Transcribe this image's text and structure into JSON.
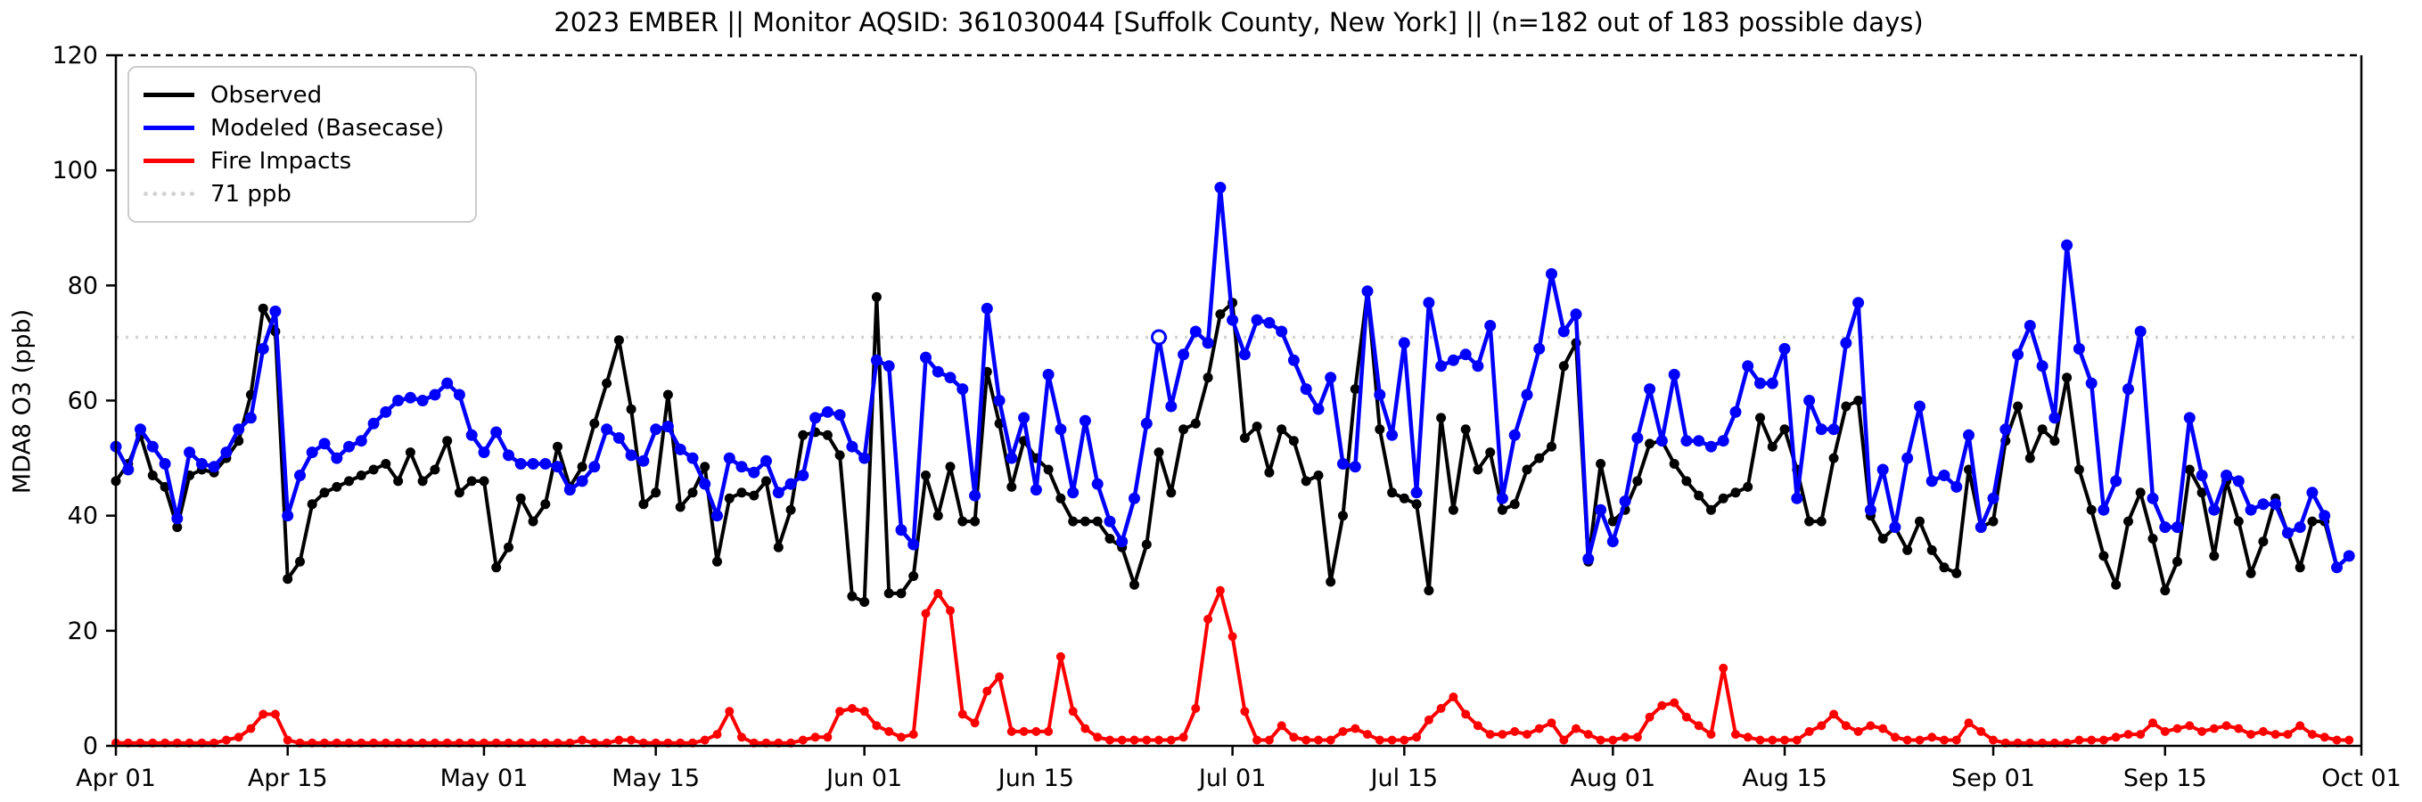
{
  "chart_data": {
    "type": "line",
    "title": "2023 EMBER || Monitor AQSID: 361030044 [Suffolk County, New York] || (n=182 out of 183 possible days)",
    "ylabel": "MDA8 O3 (ppb)",
    "xlabel": "",
    "ylim": [
      0,
      120
    ],
    "y_ticks": [
      0,
      20,
      40,
      60,
      80,
      100,
      120
    ],
    "x_start_date": "Apr 01",
    "x_end_date": "Oct 01",
    "n_days": 183,
    "x_ticks": [
      {
        "day": 0,
        "label": "Apr 01"
      },
      {
        "day": 14,
        "label": "Apr 15"
      },
      {
        "day": 30,
        "label": "May 01"
      },
      {
        "day": 44,
        "label": "May 15"
      },
      {
        "day": 61,
        "label": "Jun 01"
      },
      {
        "day": 75,
        "label": "Jun 15"
      },
      {
        "day": 91,
        "label": "Jul 01"
      },
      {
        "day": 105,
        "label": "Jul 15"
      },
      {
        "day": 122,
        "label": "Aug 01"
      },
      {
        "day": 136,
        "label": "Aug 15"
      },
      {
        "day": 153,
        "label": "Sep 01"
      },
      {
        "day": 167,
        "label": "Sep 15"
      },
      {
        "day": 183,
        "label": "Oct 01"
      }
    ],
    "grid": false,
    "legend_position": "upper-left",
    "threshold": {
      "label": "71 ppb",
      "value": 71,
      "color": "#d3d3d3",
      "style": "dotted"
    },
    "series": [
      {
        "name": "Observed",
        "color": "#000000",
        "marker": "circle",
        "values": [
          46,
          49,
          54,
          47,
          45,
          38,
          47,
          48,
          47.5,
          50,
          53,
          61,
          76,
          72,
          29,
          32,
          42,
          44,
          45,
          46,
          47,
          48,
          49,
          46,
          51,
          46,
          48,
          53,
          44,
          46,
          46,
          31,
          34.5,
          43,
          39,
          42,
          52,
          45,
          48.5,
          56,
          63,
          70.5,
          58.5,
          42,
          44,
          61,
          41.5,
          44,
          48.5,
          32,
          43,
          44,
          43.5,
          46,
          34.5,
          41,
          54,
          54.5,
          54,
          50.5,
          26,
          25,
          78,
          26.5,
          26.5,
          29.5,
          47,
          40,
          48.5,
          39,
          39,
          65,
          56,
          45,
          53,
          50,
          48,
          43,
          39,
          39,
          39,
          36,
          34.5,
          28,
          35,
          51,
          44,
          55,
          56,
          64,
          75,
          77,
          53.5,
          55.5,
          47.5,
          55,
          53,
          46,
          47,
          28.5,
          40,
          62,
          79,
          55,
          44,
          43,
          42,
          27,
          57,
          41,
          55,
          48,
          51,
          41,
          42,
          48,
          50,
          52,
          66,
          70,
          32,
          49,
          39,
          41,
          46,
          52.5,
          53,
          49,
          46,
          43.5,
          41,
          43,
          44,
          45,
          57,
          52,
          55,
          48,
          39,
          39,
          50,
          59,
          60,
          40,
          36,
          38,
          34,
          39,
          34,
          31,
          30,
          48,
          38,
          39,
          53,
          59,
          50,
          55,
          53,
          64,
          48,
          41,
          33,
          28,
          39,
          44,
          36,
          27,
          32,
          48,
          44,
          33,
          46,
          39,
          30,
          35.5,
          43,
          37,
          31,
          39,
          39,
          31,
          33
        ]
      },
      {
        "name": "Modeled (Basecase)",
        "color": "#0000ff",
        "marker": "circle",
        "open_marker_day_index": 85,
        "values": [
          52,
          48,
          55,
          52,
          49,
          39.5,
          51,
          49,
          48.5,
          51,
          55,
          57,
          69,
          75.5,
          40,
          47,
          51,
          52.5,
          50,
          52,
          53,
          56,
          58,
          60,
          60.5,
          60,
          61,
          63,
          61,
          54,
          51,
          54.5,
          50.5,
          49,
          49,
          49,
          48.5,
          44.5,
          46,
          48.5,
          55,
          53.5,
          50.5,
          49.5,
          55,
          55.5,
          51.5,
          50,
          45.5,
          40,
          50,
          48.5,
          47.5,
          49.5,
          44,
          45.5,
          47,
          57,
          58,
          57.5,
          52,
          50,
          67,
          66,
          37.5,
          35,
          67.5,
          65,
          64,
          62,
          43.5,
          76,
          60,
          50,
          57,
          44.5,
          64.5,
          55,
          44,
          56.5,
          45.5,
          39,
          35.5,
          43,
          56,
          71,
          59,
          68,
          72,
          70,
          97,
          74,
          68,
          74,
          73.5,
          72,
          67,
          62,
          58.5,
          64,
          49,
          48.5,
          79,
          61,
          54,
          70,
          44,
          77,
          66,
          67,
          68,
          66,
          73,
          43,
          54,
          61,
          69,
          82,
          72,
          75,
          32.5,
          41,
          35.5,
          42.5,
          53.5,
          62,
          53,
          64.5,
          53,
          53,
          52,
          53,
          58,
          66,
          63,
          63,
          69,
          43,
          60,
          55,
          55,
          70,
          77,
          41,
          48,
          38,
          50,
          59,
          46,
          47,
          45,
          54,
          38,
          43,
          55,
          68,
          73,
          66,
          57,
          87,
          69,
          63,
          41,
          46,
          62,
          72,
          43,
          38,
          38,
          57,
          47,
          41,
          47,
          46,
          41,
          42,
          42,
          37,
          38,
          44,
          40,
          31,
          33
        ]
      },
      {
        "name": "Fire Impacts",
        "color": "#ff0000",
        "marker": "circle",
        "values": [
          0.5,
          0.5,
          0.5,
          0.5,
          0.5,
          0.5,
          0.5,
          0.5,
          0.5,
          1,
          1.5,
          3,
          5.5,
          5.5,
          1,
          0.5,
          0.5,
          0.5,
          0.5,
          0.5,
          0.5,
          0.5,
          0.5,
          0.5,
          0.5,
          0.5,
          0.5,
          0.5,
          0.5,
          0.5,
          0.5,
          0.5,
          0.5,
          0.5,
          0.5,
          0.5,
          0.5,
          0.5,
          1,
          0.5,
          0.5,
          1,
          1,
          0.5,
          0.5,
          0.5,
          0.5,
          0.5,
          1,
          2,
          6,
          1.5,
          0.5,
          0.5,
          0.5,
          0.5,
          1,
          1.5,
          1.5,
          6,
          6.5,
          6,
          3.5,
          2.5,
          1.5,
          2,
          23,
          26.5,
          23.5,
          5.5,
          4,
          9.5,
          12,
          2.5,
          2.5,
          2.5,
          2.5,
          15.5,
          6,
          3,
          1.5,
          1,
          1,
          1,
          1,
          1,
          1,
          1.5,
          6.5,
          22,
          27,
          19,
          6,
          1,
          1,
          3.5,
          1.5,
          1,
          1,
          1,
          2.5,
          3,
          2,
          1,
          1,
          1,
          1.5,
          4.5,
          6.5,
          8.5,
          5.5,
          3.5,
          2,
          2,
          2.5,
          2,
          3,
          4,
          1,
          3,
          2,
          1,
          1,
          1.5,
          1.5,
          5,
          7,
          7.5,
          5,
          3.5,
          2,
          13.5,
          2,
          1.5,
          1,
          1,
          1,
          1,
          2.5,
          3.5,
          5.5,
          3.5,
          2.5,
          3.5,
          3,
          1.5,
          1,
          1,
          1.5,
          1,
          1,
          4,
          2.5,
          1,
          0.5,
          0.5,
          0.5,
          0.5,
          0.5,
          0.5,
          1,
          1,
          1,
          1.5,
          2,
          2,
          4,
          2.5,
          3,
          3.5,
          2.5,
          3,
          3.5,
          3,
          2,
          2.5,
          2,
          2,
          3.5,
          2,
          1.5,
          1,
          1
        ]
      }
    ],
    "legend_items": [
      {
        "label": "Observed"
      },
      {
        "label": "Modeled (Basecase)"
      },
      {
        "label": "Fire Impacts"
      },
      {
        "label": "71 ppb"
      }
    ]
  }
}
